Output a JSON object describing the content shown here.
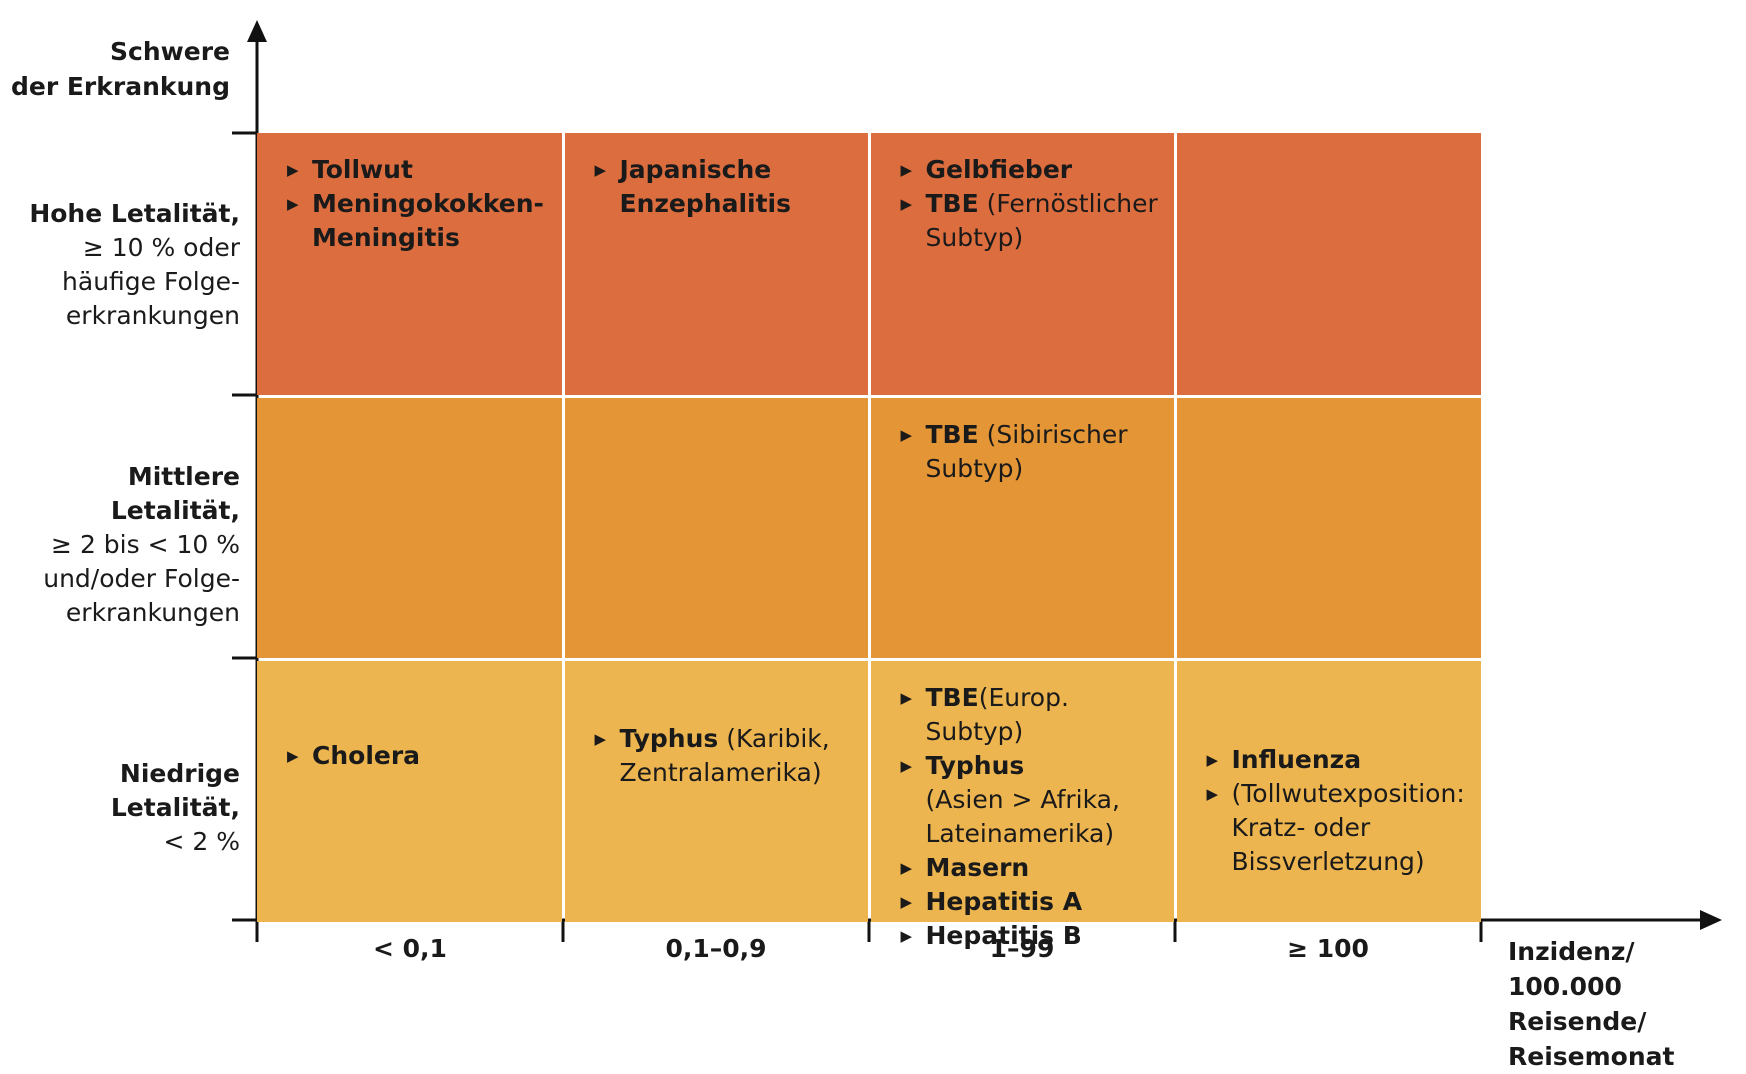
{
  "y_axis_title": [
    "Schwere",
    "der Erkrankung"
  ],
  "x_axis_title": [
    "Inzidenz/",
    "100.000 Reisende/",
    "Reisemonat"
  ],
  "x_categories": [
    "< 0,1",
    "0,1–0,9",
    "1–99",
    "≥ 100"
  ],
  "rows": [
    {
      "label": {
        "head": "Hohe Letalität,",
        "lines": [
          "≥ 10 % oder",
          "häufige Folge-",
          "erkrankungen"
        ]
      },
      "color": "#dc6d3e",
      "cells": [
        [
          {
            "bold": "Tollwut",
            "rest": ""
          },
          {
            "bold": "Meningokokken-\nMeningitis",
            "rest": ""
          }
        ],
        [
          {
            "bold": "Japanische\nEnzephalitis",
            "rest": ""
          }
        ],
        [
          {
            "bold": "Gelbfieber",
            "rest": ""
          },
          {
            "bold": "TBE",
            "rest": " (Fernöstlicher\nSubtyp)"
          }
        ],
        []
      ]
    },
    {
      "label": {
        "head": "Mittlere Letalität,",
        "lines": [
          "≥ 2 bis < 10 %",
          "und/oder Folge-",
          "erkrankungen"
        ]
      },
      "color": "#e49535",
      "cells": [
        [],
        [],
        [
          {
            "bold": "TBE",
            "rest": " (Sibirischer\nSubtyp)"
          }
        ],
        []
      ]
    },
    {
      "label": {
        "head": "Niedrige Letalität,",
        "lines": [
          "< 2 %"
        ]
      },
      "color": "#edb54f",
      "cells": [
        [
          {
            "bold": "Cholera",
            "rest": ""
          }
        ],
        [
          {
            "bold": "Typhus",
            "rest": " (Karibik,\nZentralamerika)"
          }
        ],
        [
          {
            "bold": "TBE",
            "rest": "(Europ. Subtyp)"
          },
          {
            "bold": "Typhus",
            "rest": "\n(Asien > Afrika,\nLateinamerika)"
          },
          {
            "bold": "Masern",
            "rest": ""
          },
          {
            "bold": "Hepatitis A",
            "rest": ""
          },
          {
            "bold": "Hepatitis B",
            "rest": ""
          }
        ],
        [
          {
            "bold": "Influenza",
            "rest": ""
          },
          {
            "bold": "",
            "rest": "(Tollwutexposition:\nKratz- oder\nBissverletzung)"
          }
        ]
      ]
    }
  ]
}
